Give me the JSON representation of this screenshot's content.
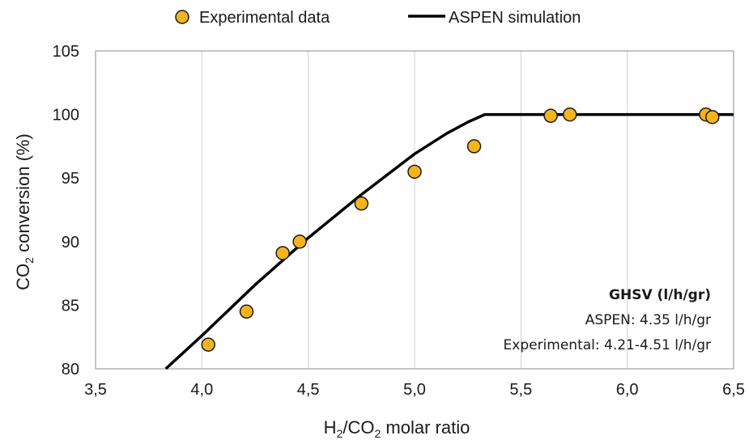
{
  "chart_data": {
    "type": "scatter",
    "x_axis": {
      "label_main": "H",
      "label_sub1": "2",
      "label_mid": "/CO",
      "label_sub2": "2",
      "label_tail": " molar ratio",
      "range": [
        3.5,
        6.5
      ],
      "ticks": [
        3.5,
        4.0,
        4.5,
        5.0,
        5.5,
        6.0,
        6.5
      ],
      "tick_labels": [
        "3,5",
        "4,0",
        "4,5",
        "5,0",
        "5,5",
        "6,0",
        "6,5"
      ]
    },
    "y_axis": {
      "label_main": "CO",
      "label_sub": "2",
      "label_tail": " conversion (%)",
      "range": [
        80,
        105
      ],
      "ticks": [
        80,
        85,
        90,
        95,
        100,
        105
      ],
      "tick_labels": [
        "80",
        "85",
        "90",
        "95",
        "100",
        "105"
      ]
    },
    "grid": "vertical",
    "legend_position": "top",
    "series": [
      {
        "name": "Experimental data",
        "kind": "scatter",
        "color": "#F5B41B",
        "edge_color": "#1a1a1a",
        "points": [
          {
            "x": 4.03,
            "y": 81.9
          },
          {
            "x": 4.21,
            "y": 84.5
          },
          {
            "x": 4.38,
            "y": 89.1
          },
          {
            "x": 4.46,
            "y": 90.0
          },
          {
            "x": 4.75,
            "y": 93.0
          },
          {
            "x": 5.0,
            "y": 95.5
          },
          {
            "x": 5.28,
            "y": 97.5
          },
          {
            "x": 5.64,
            "y": 99.9
          },
          {
            "x": 5.73,
            "y": 100.0
          },
          {
            "x": 6.37,
            "y": 100.0
          },
          {
            "x": 6.4,
            "y": 99.8
          }
        ]
      },
      {
        "name": "ASPEN simulation",
        "kind": "line",
        "color": "#000000",
        "points": [
          {
            "x": 3.83,
            "y": 80.0
          },
          {
            "x": 4.0,
            "y": 82.6
          },
          {
            "x": 4.25,
            "y": 86.6
          },
          {
            "x": 4.5,
            "y": 90.3
          },
          {
            "x": 4.75,
            "y": 93.7
          },
          {
            "x": 5.0,
            "y": 96.9
          },
          {
            "x": 5.15,
            "y": 98.5
          },
          {
            "x": 5.25,
            "y": 99.4
          },
          {
            "x": 5.33,
            "y": 100.0
          },
          {
            "x": 6.5,
            "y": 100.0
          }
        ]
      }
    ],
    "annotation": {
      "title": "GHSV (l/h/gr)",
      "line1": "ASPEN: 4.35 l/h/gr",
      "line2": "Experimental: 4.21-4.51 l/h/gr"
    }
  }
}
